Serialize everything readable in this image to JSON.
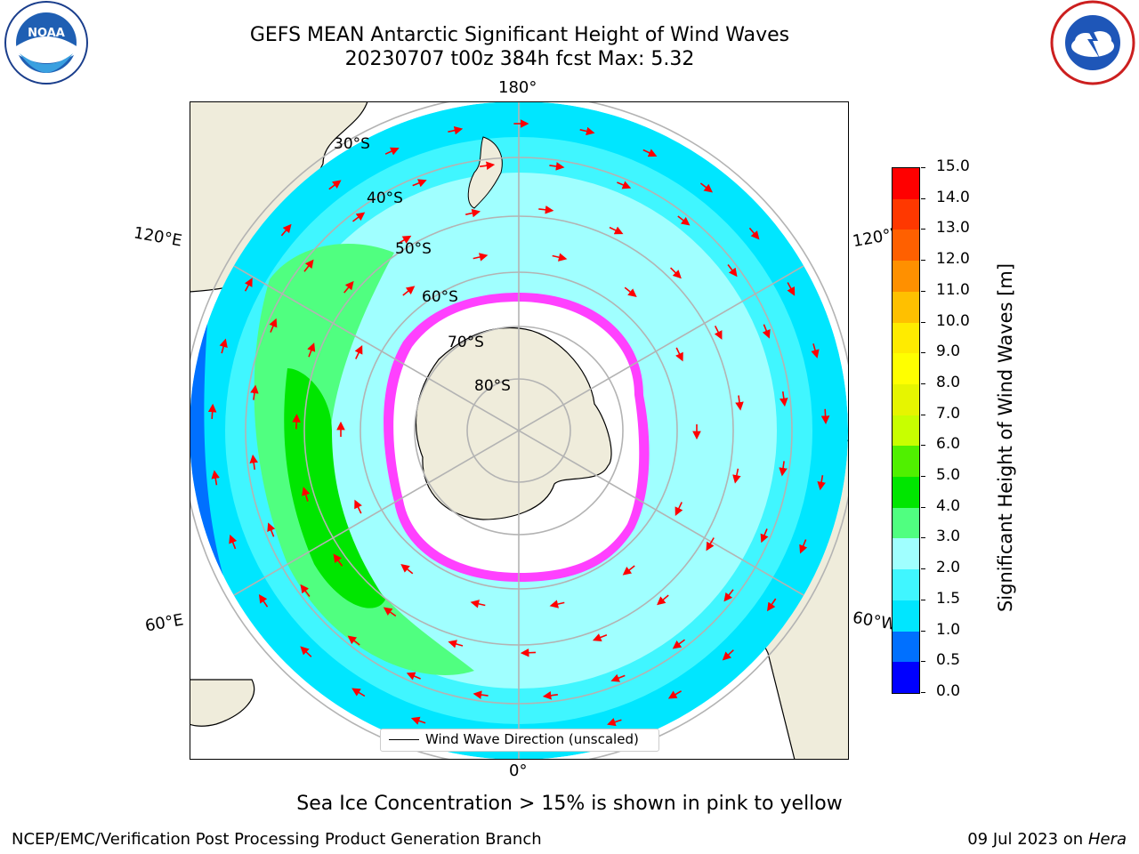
{
  "header": {
    "title_line1": "GEFS MEAN Antarctic Significant Height of Wind Waves",
    "title_line2": "20230707 t00z 384h fcst   Max: 5.32"
  },
  "logos": {
    "noaa": {
      "icon": "noaa-logo",
      "text": "NOAA",
      "ring_text": "NATIONAL OCEANIC AND ATMOSPHERIC ADMINISTRATION · U.S. DEPARTMENT OF COMMERCE"
    },
    "nws": {
      "icon": "nws-logo",
      "ring_text": "NATIONAL WEATHER SERVICE"
    }
  },
  "map": {
    "projection": "south polar stereographic",
    "longitude_labels": {
      "top": "180°",
      "bottom": "0°",
      "upper_left": "120°E",
      "upper_right": "120°W",
      "lower_left": "60°E",
      "lower_right": "60°W"
    },
    "latitude_labels": [
      "30°S",
      "40°S",
      "50°S",
      "60°S",
      "70°S",
      "80°S"
    ],
    "colors": {
      "land": "#efecdb",
      "coastline": "#000000",
      "gridlines": "#b3b3b3",
      "arrows": "#ff0000"
    }
  },
  "legend": {
    "label": "Wind Wave Direction (unscaled)"
  },
  "colorbar": {
    "title": "Significant Height of Wind Waves [m]",
    "ticks": [
      "0.0",
      "0.5",
      "1.0",
      "1.5",
      "2.0",
      "3.0",
      "4.0",
      "5.0",
      "6.0",
      "7.0",
      "8.0",
      "9.0",
      "10.0",
      "11.0",
      "12.0",
      "13.0",
      "14.0",
      "15.0"
    ],
    "colors": [
      "#0000ff",
      "#0070ff",
      "#00e6ff",
      "#40f6ff",
      "#a0ffff",
      "#50ff80",
      "#00e600",
      "#50f000",
      "#c8ff00",
      "#e6f500",
      "#ffff00",
      "#ffeb00",
      "#ffc000",
      "#ff9000",
      "#ff6000",
      "#ff3800",
      "#ff0000"
    ]
  },
  "notes": {
    "sea_ice": "Sea Ice Concentration > 15% is shown in pink to yellow"
  },
  "footer": {
    "left": "NCEP/EMC/Verification Post Processing Product Generation Branch",
    "right_date": "09 Jul 2023 on ",
    "right_system": "Hera"
  }
}
